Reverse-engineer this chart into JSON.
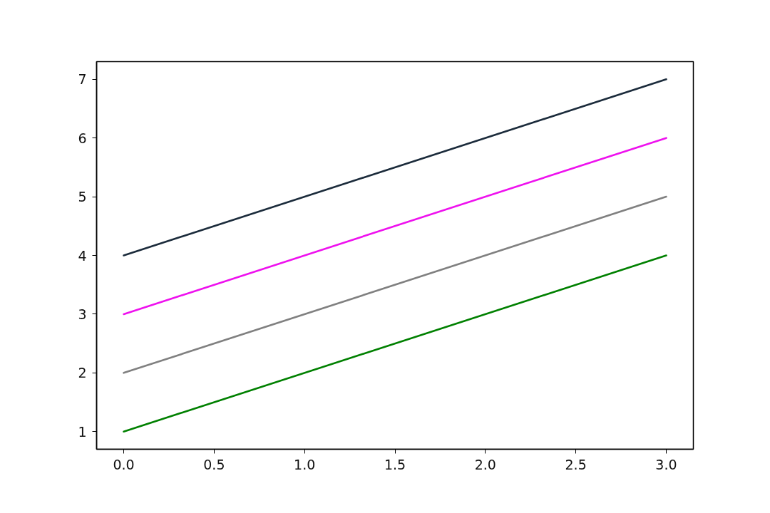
{
  "chart_data": {
    "type": "line",
    "x": [
      0,
      3
    ],
    "series": [
      {
        "color": "#008000",
        "values": [
          1,
          4
        ]
      },
      {
        "color": "#808080",
        "values": [
          2,
          5
        ]
      },
      {
        "color": "#ee11ee",
        "values": [
          3,
          6
        ]
      },
      {
        "color": "#1b2b3b",
        "values": [
          4,
          7
        ]
      }
    ],
    "xlim": [
      -0.15,
      3.15
    ],
    "ylim": [
      0.7,
      7.3
    ],
    "xticks": [
      {
        "value": 0,
        "label": "0.0"
      },
      0.5,
      {
        "value": 1,
        "label": "1.0"
      },
      1.5,
      {
        "value": 2,
        "label": "2.0"
      },
      2.5,
      {
        "value": 3,
        "label": "3.0"
      }
    ],
    "yticks": [
      1,
      2,
      3,
      4,
      5,
      6,
      7
    ],
    "line_style": "solid"
  }
}
